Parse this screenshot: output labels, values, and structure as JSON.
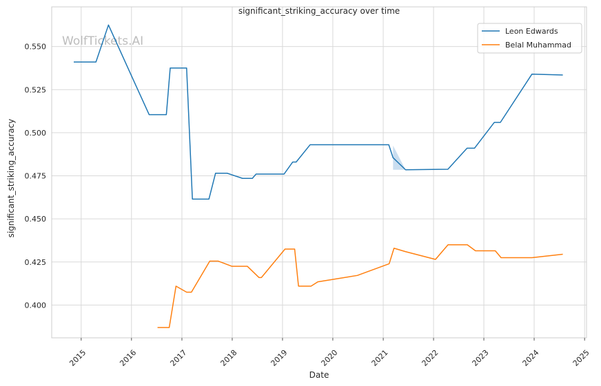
{
  "chart_data": {
    "type": "line",
    "title": "significant_striking_accuracy over time",
    "xlabel": "Date",
    "ylabel": "significant_striking_accuracy",
    "watermark": "WolfTickets.AI",
    "x_axis_type": "date",
    "xlim": [
      "2014-06-01",
      "2025-01-15"
    ],
    "ylim": [
      0.381,
      0.573
    ],
    "x_ticks": [
      "2015",
      "2016",
      "2017",
      "2018",
      "2019",
      "2020",
      "2021",
      "2022",
      "2023",
      "2024",
      "2025"
    ],
    "y_ticks": [
      "0.400",
      "0.425",
      "0.450",
      "0.475",
      "0.500",
      "0.525",
      "0.550"
    ],
    "grid": true,
    "legend_position": "top-right",
    "colors": {
      "leon": "#1f77b4",
      "belal": "#ff7f0e",
      "band": "#a6c8e6",
      "grid": "#d9d9d9",
      "axis": "#cccccc"
    },
    "series": [
      {
        "name": "Leon Edwards",
        "points": [
          [
            "2014-11-08",
            0.541
          ],
          [
            "2015-04-18",
            0.541
          ],
          [
            "2015-07-18",
            0.5625
          ],
          [
            "2016-01-01",
            0.533
          ],
          [
            "2016-05-08",
            0.5105
          ],
          [
            "2016-09-10",
            0.5105
          ],
          [
            "2016-10-08",
            0.5375
          ],
          [
            "2017-02-04",
            0.5375
          ],
          [
            "2017-03-18",
            0.4615
          ],
          [
            "2017-07-16",
            0.4615
          ],
          [
            "2017-09-02",
            0.4765
          ],
          [
            "2017-11-25",
            0.4765
          ],
          [
            "2018-03-17",
            0.4735
          ],
          [
            "2018-05-27",
            0.4735
          ],
          [
            "2018-06-23",
            0.476
          ],
          [
            "2019-01-12",
            0.476
          ],
          [
            "2019-03-16",
            0.483
          ],
          [
            "2019-04-10",
            0.483
          ],
          [
            "2019-07-20",
            0.493
          ],
          [
            "2021-02-10",
            0.493
          ],
          [
            "2021-03-13",
            0.4855
          ],
          [
            "2021-06-12",
            0.4785
          ],
          [
            "2022-04-15",
            0.4788
          ],
          [
            "2022-09-01",
            0.491
          ],
          [
            "2022-10-25",
            0.491
          ],
          [
            "2023-03-18",
            0.506
          ],
          [
            "2023-05-01",
            0.506
          ],
          [
            "2023-12-16",
            0.534
          ],
          [
            "2024-07-27",
            0.5335
          ]
        ]
      },
      {
        "name": "Belal Muhammad",
        "points": [
          [
            "2016-07-08",
            0.387
          ],
          [
            "2016-10-01",
            0.387
          ],
          [
            "2016-11-19",
            0.411
          ],
          [
            "2017-02-04",
            0.4075
          ],
          [
            "2017-03-11",
            0.4075
          ],
          [
            "2017-07-22",
            0.4255
          ],
          [
            "2017-09-22",
            0.4255
          ],
          [
            "2017-12-30",
            0.4225
          ],
          [
            "2018-04-21",
            0.4225
          ],
          [
            "2018-07-14",
            0.416
          ],
          [
            "2018-08-01",
            0.416
          ],
          [
            "2019-01-19",
            0.4325
          ],
          [
            "2019-03-30",
            0.4325
          ],
          [
            "2019-04-27",
            0.411
          ],
          [
            "2019-07-27",
            0.411
          ],
          [
            "2019-09-14",
            0.4135
          ],
          [
            "2020-06-27",
            0.4172
          ],
          [
            "2021-02-13",
            0.424
          ],
          [
            "2021-03-20",
            0.433
          ],
          [
            "2021-06-12",
            0.431
          ],
          [
            "2022-01-15",
            0.4265
          ],
          [
            "2022-04-16",
            0.435
          ],
          [
            "2022-09-03",
            0.435
          ],
          [
            "2022-11-01",
            0.4315
          ],
          [
            "2023-03-25",
            0.4315
          ],
          [
            "2023-05-06",
            0.4275
          ],
          [
            "2023-12-16",
            0.4275
          ],
          [
            "2024-07-27",
            0.4295
          ]
        ]
      }
    ],
    "bands": [
      {
        "series": "Leon Edwards",
        "upper": [
          [
            "2021-03-13",
            0.4925
          ],
          [
            "2021-06-12",
            0.4785
          ]
        ],
        "lower": [
          [
            "2021-03-13",
            0.4785
          ],
          [
            "2021-06-12",
            0.4785
          ]
        ]
      }
    ]
  }
}
